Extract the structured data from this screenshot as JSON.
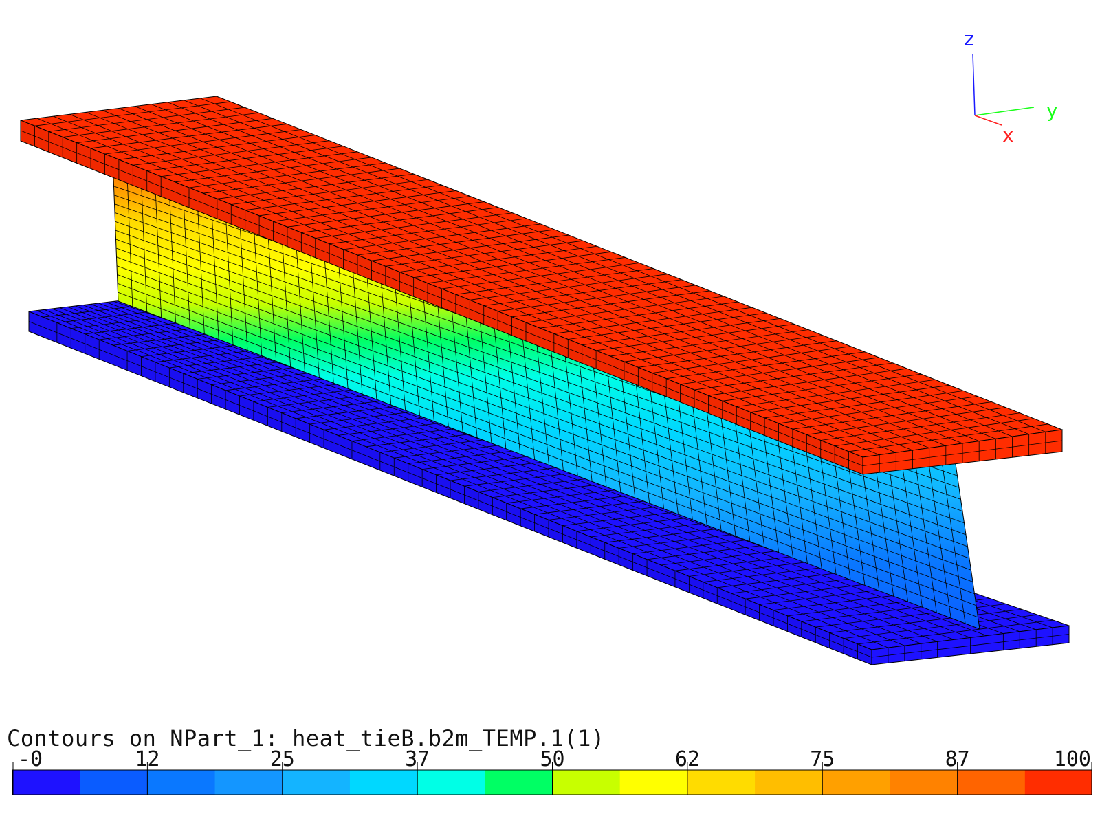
{
  "legend": {
    "title": "Contours on NPart_1: heat_tieB.b2m_TEMP.1(1)",
    "tick_labels": [
      "-0",
      "12",
      "25",
      "37",
      "50",
      "62",
      "75",
      "87",
      "100"
    ],
    "colors": [
      "#1e12ff",
      "#0a5cff",
      "#0a78ff",
      "#1496ff",
      "#14b4ff",
      "#00d8ff",
      "#00ffe6",
      "#00ff64",
      "#c8ff00",
      "#ffff00",
      "#ffdc00",
      "#ffbe00",
      "#ffa000",
      "#ff8200",
      "#ff6400",
      "#ff2d00"
    ]
  },
  "triad": {
    "z_label": "z",
    "y_label": "y",
    "x_label": "x",
    "z_color": "#1a1aff",
    "y_color": "#1aff1a",
    "x_color": "#ff2020"
  },
  "model": {
    "part": "I-beam",
    "top_flange_color": "#ff2d00",
    "bottom_flange_color": "#1e12ff",
    "web_gradient": [
      "#ff8200",
      "#ffdc00",
      "#ffff00",
      "#c8ff00",
      "#00ff64",
      "#00ffe6",
      "#00d8ff",
      "#14b4ff",
      "#0a78ff",
      "#0a5cff"
    ]
  }
}
